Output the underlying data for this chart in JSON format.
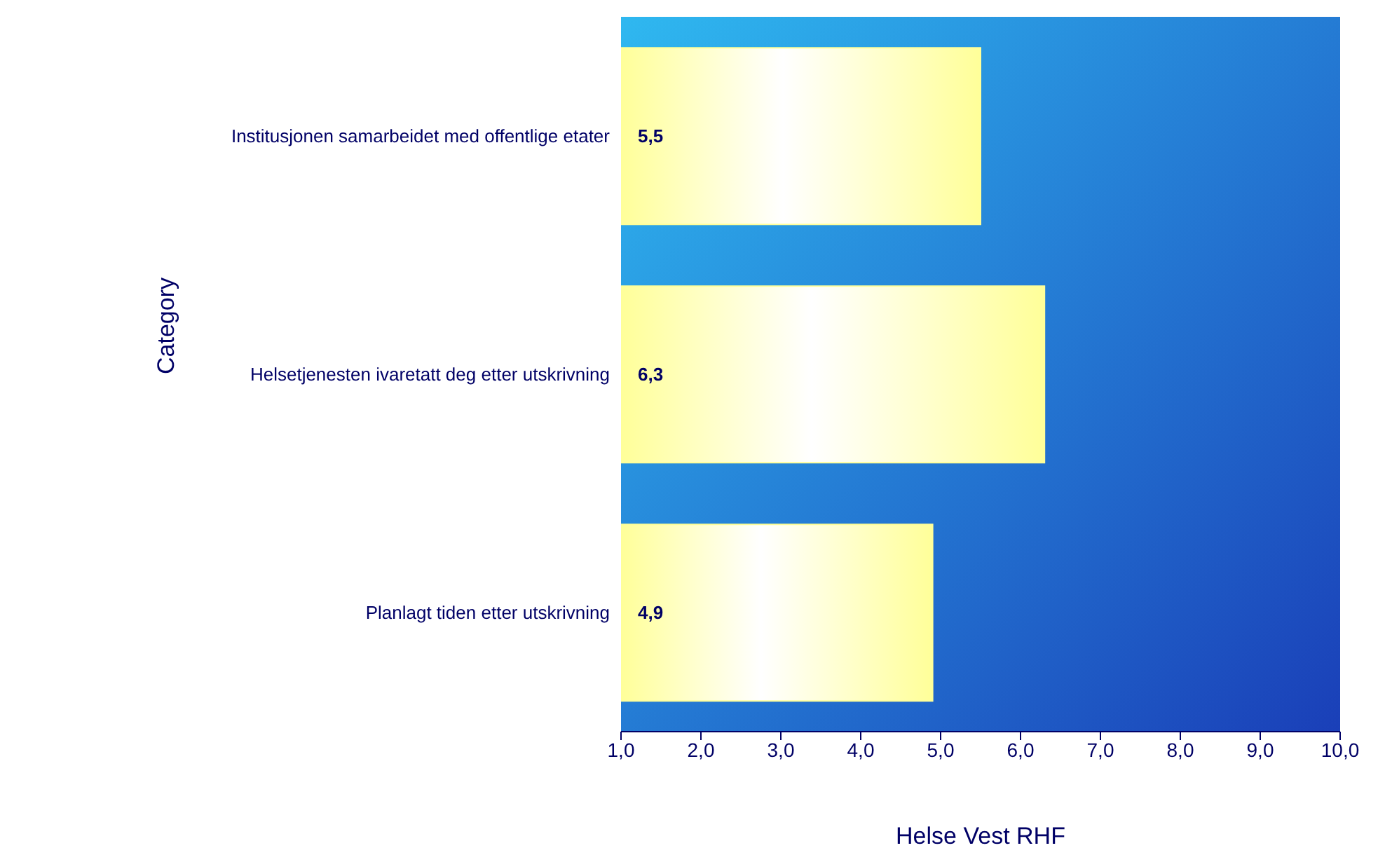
{
  "chart_data": {
    "type": "bar",
    "orientation": "horizontal",
    "xlabel": "Helse Vest RHF",
    "ylabel": "Category",
    "categories": [
      "Institusjonen samarbeidet med offentlige etater",
      "Helsetjenesten ivaretatt deg etter utskrivning",
      "Planlagt tiden etter utskrivning"
    ],
    "values": [
      5.5,
      6.3,
      4.9
    ],
    "value_labels": [
      "5,5",
      "6,3",
      "4,9"
    ],
    "color": "#ffff99",
    "xlim": [
      1,
      10
    ],
    "xticks": [
      {
        "value": 1,
        "label": "1,0"
      },
      {
        "value": 2,
        "label": "2,0"
      },
      {
        "value": 3,
        "label": "3,0"
      },
      {
        "value": 4,
        "label": "4,0"
      },
      {
        "value": 5,
        "label": "5,0"
      },
      {
        "value": 6,
        "label": "6,0"
      },
      {
        "value": 7,
        "label": "7,0"
      },
      {
        "value": 8,
        "label": "8,0"
      },
      {
        "value": 9,
        "label": "9,0"
      },
      {
        "value": 10,
        "label": "10,0"
      }
    ],
    "grid": false,
    "legend": false
  }
}
